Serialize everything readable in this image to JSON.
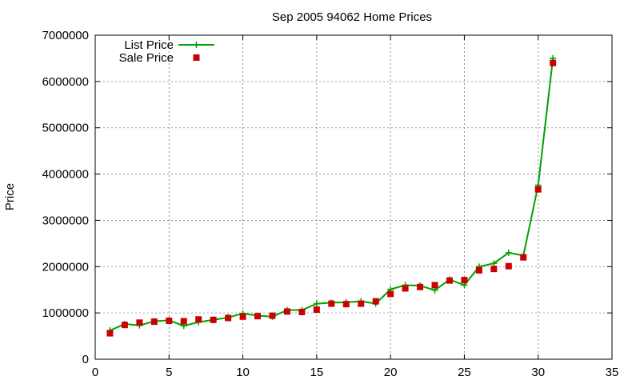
{
  "chart_data": {
    "type": "line",
    "title": "Sep 2005 94062 Home Prices",
    "xlabel": "",
    "ylabel": "Price",
    "xlim": [
      0,
      35
    ],
    "ylim": [
      0,
      7000000
    ],
    "xticks": [
      0,
      5,
      10,
      15,
      20,
      25,
      30,
      35
    ],
    "yticks": [
      0,
      1000000,
      2000000,
      3000000,
      4000000,
      5000000,
      6000000,
      7000000
    ],
    "grid": true,
    "legend_position": "top-left",
    "series": [
      {
        "name": "List Price",
        "style": "line-with-plus-markers",
        "color": "#00a000",
        "x": [
          1,
          2,
          3,
          4,
          5,
          6,
          7,
          8,
          9,
          10,
          11,
          12,
          13,
          14,
          15,
          16,
          17,
          18,
          19,
          20,
          21,
          22,
          23,
          24,
          25,
          26,
          27,
          28,
          29,
          30,
          31
        ],
        "values": [
          620000,
          760000,
          730000,
          820000,
          840000,
          720000,
          800000,
          850000,
          900000,
          990000,
          940000,
          920000,
          1060000,
          1060000,
          1200000,
          1220000,
          1230000,
          1250000,
          1200000,
          1510000,
          1600000,
          1590000,
          1490000,
          1720000,
          1600000,
          2000000,
          2070000,
          2300000,
          2240000,
          3760000,
          6500000
        ]
      },
      {
        "name": "Sale Price",
        "style": "square-markers",
        "color": "#cc0000",
        "x": [
          1,
          2,
          3,
          4,
          5,
          6,
          7,
          8,
          9,
          10,
          11,
          12,
          13,
          14,
          15,
          16,
          17,
          18,
          19,
          20,
          21,
          22,
          23,
          24,
          25,
          26,
          27,
          28,
          29,
          30,
          31
        ],
        "values": [
          560000,
          740000,
          790000,
          810000,
          830000,
          820000,
          860000,
          850000,
          890000,
          920000,
          930000,
          940000,
          1030000,
          1020000,
          1070000,
          1200000,
          1190000,
          1200000,
          1250000,
          1410000,
          1530000,
          1560000,
          1600000,
          1700000,
          1710000,
          1920000,
          1950000,
          2010000,
          2200000,
          3670000,
          6400000
        ]
      }
    ]
  }
}
